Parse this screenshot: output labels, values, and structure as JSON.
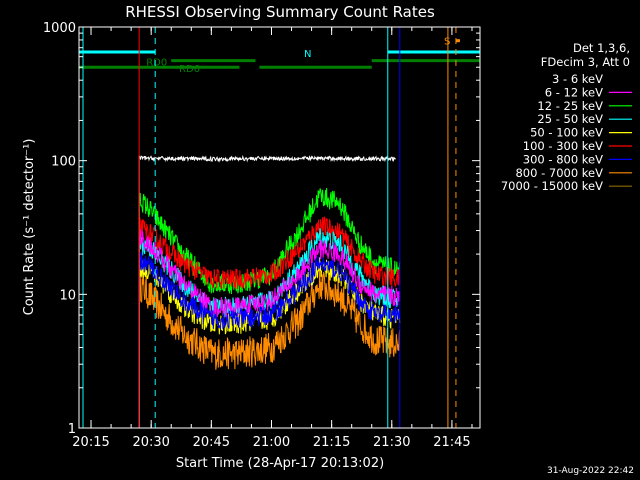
{
  "chart_data": {
    "type": "line",
    "title": "RHESSI Observing Summary Count Rates",
    "xlabel": "Start Time (28-Apr-17 20:13:02)",
    "ylabel": "Count Rate (s⁻¹ detector⁻¹)",
    "y_scale": "log",
    "ylim": [
      1,
      1000
    ],
    "xlim": [
      "20:12",
      "21:52"
    ],
    "x_ticks": [
      "20:15",
      "20:30",
      "20:45",
      "21:00",
      "21:15",
      "21:30",
      "21:45"
    ],
    "y_ticks": [
      "1",
      "10",
      "100",
      "1000"
    ],
    "grid": false,
    "legend_placement": "right",
    "legend_header": [
      "Det 1,3,6,",
      "FDecim 3, Att 0"
    ],
    "data_start": "20:27",
    "data_end": "21:32",
    "series": [
      {
        "name": "3 - 6 keV",
        "color": "#000000",
        "display_color": "#ffffff",
        "x": [
          "20:27",
          "20:30",
          "20:45",
          "21:00",
          "21:15",
          "21:31"
        ],
        "values": [
          105,
          104,
          103,
          104,
          104,
          103
        ]
      },
      {
        "name": "6 - 12 keV",
        "color": "#ff00ff",
        "x": [
          "20:27",
          "20:30",
          "20:38",
          "20:45",
          "20:52",
          "21:00",
          "21:07",
          "21:12",
          "21:17",
          "21:22",
          "21:26",
          "21:32"
        ],
        "values": [
          27,
          23,
          12,
          8,
          8,
          9,
          14,
          22,
          20,
          12,
          10,
          9.5
        ]
      },
      {
        "name": "12 - 25 keV",
        "color": "#00ff00",
        "x": [
          "20:27",
          "20:30",
          "20:38",
          "20:45",
          "20:52",
          "21:00",
          "21:07",
          "21:12",
          "21:17",
          "21:22",
          "21:26",
          "21:32"
        ],
        "values": [
          52,
          42,
          20,
          12,
          12,
          14,
          30,
          55,
          48,
          24,
          17,
          15
        ]
      },
      {
        "name": "25 - 50 keV",
        "color": "#00ffff",
        "x": [
          "20:27",
          "20:30",
          "20:38",
          "20:45",
          "20:52",
          "21:00",
          "21:07",
          "21:12",
          "21:17",
          "21:22",
          "21:26",
          "21:32"
        ],
        "values": [
          24,
          22,
          12,
          8,
          8,
          9,
          16,
          27,
          24,
          14,
          10,
          9
        ]
      },
      {
        "name": "50 - 100 keV",
        "color": "#ffff00",
        "x": [
          "20:27",
          "20:30",
          "20:38",
          "20:45",
          "20:52",
          "21:00",
          "21:07",
          "21:12",
          "21:17",
          "21:22",
          "21:26",
          "21:32"
        ],
        "values": [
          16,
          15,
          8,
          6,
          6,
          6.5,
          11,
          16,
          14,
          9,
          7,
          6.5
        ]
      },
      {
        "name": "100 - 300 keV",
        "color": "#ff0000",
        "x": [
          "20:27",
          "20:30",
          "20:38",
          "20:45",
          "20:52",
          "21:00",
          "21:07",
          "21:12",
          "21:17",
          "21:22",
          "21:26",
          "21:32"
        ],
        "values": [
          32,
          28,
          17,
          13,
          13,
          14,
          22,
          33,
          29,
          18,
          14,
          13
        ]
      },
      {
        "name": "300 - 800 keV",
        "color": "#0000ff",
        "x": [
          "20:27",
          "20:30",
          "20:38",
          "20:45",
          "20:52",
          "21:00",
          "21:07",
          "21:12",
          "21:17",
          "21:22",
          "21:26",
          "21:32"
        ],
        "values": [
          18,
          16,
          9,
          6.5,
          6.5,
          7,
          11,
          17,
          15,
          9,
          7,
          7
        ]
      },
      {
        "name": "800 - 7000 keV",
        "color": "#ff8c00",
        "x": [
          "20:27",
          "20:30",
          "20:38",
          "20:45",
          "20:52",
          "21:00",
          "21:07",
          "21:12",
          "21:17",
          "21:22",
          "21:26",
          "21:32"
        ],
        "values": [
          12,
          9.5,
          5,
          3.6,
          3.6,
          4,
          6.5,
          12,
          10,
          6,
          4.5,
          4.2
        ]
      },
      {
        "name": "7000 - 15000 keV",
        "color": "#8b6b00",
        "x": [],
        "values": []
      }
    ],
    "annotations": {
      "flag_labels": [
        "N",
        "RD0",
        "RD6",
        "S"
      ],
      "flags": [
        {
          "label": "N",
          "color": "#00ffff",
          "level": 650,
          "segments": [
            [
              "20:12",
              "20:31"
            ],
            [
              "21:29",
              "21:52"
            ]
          ]
        },
        {
          "label": "RD0",
          "color": "#008000",
          "level": 560,
          "segments": [
            [
              "20:35",
              "20:56"
            ],
            [
              "21:25",
              "21:52"
            ]
          ]
        },
        {
          "label": "RD6",
          "color": "#008000",
          "level": 500,
          "segments": [
            [
              "20:12",
              "20:52"
            ],
            [
              "20:57",
              "21:25"
            ]
          ]
        },
        {
          "label": "S",
          "color": "#ff8c00",
          "level": 790,
          "segments": [
            [
              "21:46",
              "21:47"
            ]
          ]
        }
      ],
      "vlines": [
        {
          "time": "20:13",
          "color": "#00ffff",
          "style": "solid"
        },
        {
          "time": "20:31",
          "color": "#00ffff",
          "style": "dashed"
        },
        {
          "time": "21:29",
          "color": "#00ffff",
          "style": "solid"
        },
        {
          "time": "20:27",
          "color": "#ff0000",
          "style": "solid"
        },
        {
          "time": "21:32",
          "color": "#0000ff",
          "style": "solid"
        },
        {
          "time": "21:44",
          "color": "#ff8c00",
          "style": "solid"
        },
        {
          "time": "21:46",
          "color": "#ff8c00",
          "style": "dashed"
        }
      ]
    }
  },
  "footer": {
    "stamp": "31-Aug-2022 22:42"
  }
}
